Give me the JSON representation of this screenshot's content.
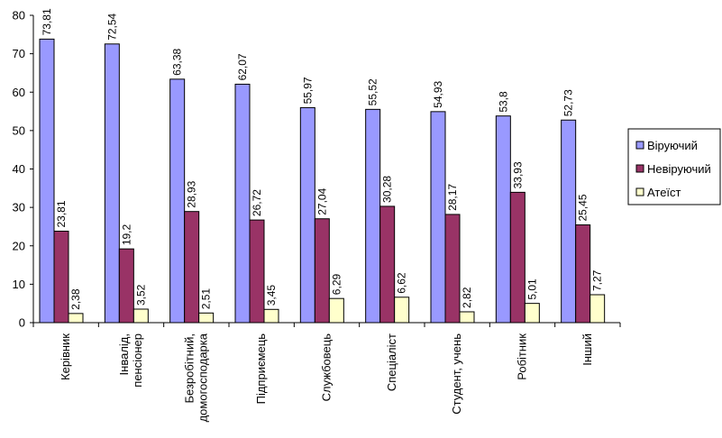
{
  "chart_data": {
    "type": "bar",
    "title": "",
    "xlabel": "",
    "ylabel": "",
    "ylim": [
      0,
      80
    ],
    "yticks": [
      0,
      10,
      20,
      30,
      40,
      50,
      60,
      70,
      80
    ],
    "grid": false,
    "legend_position": "right",
    "categories": [
      [
        "Керівник"
      ],
      [
        "Інвалід,",
        "пенсіонер"
      ],
      [
        "Безробітний,",
        "домогосподарка"
      ],
      [
        "Підприємець"
      ],
      [
        "Службовець"
      ],
      [
        "Спеціаліст"
      ],
      [
        "Студент, учень"
      ],
      [
        "Робітник"
      ],
      [
        "Інший"
      ]
    ],
    "series": [
      {
        "name": "Віруючий",
        "color": "#9999FF",
        "values": [
          73.81,
          72.54,
          63.38,
          62.07,
          55.97,
          55.52,
          54.93,
          53.8,
          52.73
        ],
        "labels": [
          "73,81",
          "72,54",
          "63,38",
          "62,07",
          "55,97",
          "55,52",
          "54,93",
          "53,8",
          "52,73"
        ]
      },
      {
        "name": "Невіруючий",
        "color": "#993366",
        "values": [
          23.81,
          19.2,
          28.93,
          26.72,
          27.04,
          30.28,
          28.17,
          33.93,
          25.45
        ],
        "labels": [
          "23,81",
          "19,2",
          "28,93",
          "26,72",
          "27,04",
          "30,28",
          "28,17",
          "33,93",
          "25,45"
        ]
      },
      {
        "name": "Атеїст",
        "color": "#FFFFCC",
        "values": [
          2.38,
          3.52,
          2.51,
          3.45,
          6.29,
          6.62,
          2.82,
          5.01,
          7.27
        ],
        "labels": [
          "2,38",
          "3,52",
          "2,51",
          "3,45",
          "6,29",
          "6,62",
          "2,82",
          "5,01",
          "7,27"
        ]
      }
    ]
  }
}
